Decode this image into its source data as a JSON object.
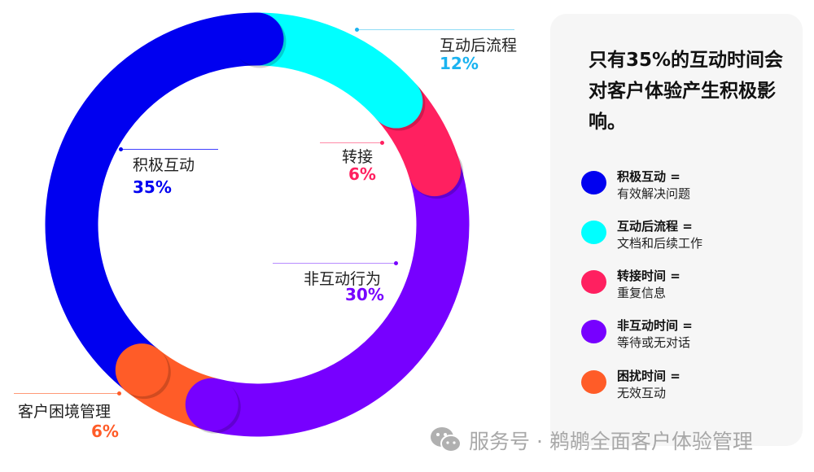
{
  "chart_data": {
    "type": "pie",
    "variant": "donut",
    "slices": [
      {
        "label": "互动后流程",
        "value": 12,
        "pct_label": "12%",
        "color": "#00ffff",
        "label_color": "#1ab3f0"
      },
      {
        "label": "转接",
        "value": 6,
        "pct_label": "6%",
        "color": "#ff2060",
        "label_color": "#ff2060"
      },
      {
        "label": "非互动行为",
        "value": 30,
        "pct_label": "30%",
        "color": "#7700ff",
        "label_color": "#7700ff"
      },
      {
        "label": "客户困境管理",
        "value": 6,
        "pct_label": "6%",
        "color": "#ff5c28",
        "label_color": "#ff5c28"
      },
      {
        "label": "积极互动",
        "value": 35,
        "pct_label": "35%",
        "color": "#0000f0",
        "label_color": "#0000f0"
      }
    ],
    "start": "top",
    "direction": "clockwise"
  },
  "panel": {
    "title": "只有35%的互动时间会对客户体验产生积极影响。",
    "legend": [
      {
        "term": "积极互动 =",
        "desc": "有效解决问题",
        "color": "#0000f0"
      },
      {
        "term": "互动后流程 =",
        "desc": "文档和后续工作",
        "color": "#00ffff"
      },
      {
        "term": "转接时间 =",
        "desc": "重复信息",
        "color": "#ff2060"
      },
      {
        "term": "非互动时间 =",
        "desc": "等待或无对话",
        "color": "#7700ff"
      },
      {
        "term": "困扰时间 =",
        "desc": "无效互动",
        "color": "#ff5c28"
      }
    ]
  },
  "watermark": {
    "icon": "wechat-icon",
    "text": "服务号 · 鹈鹕全面客户体验管理"
  }
}
